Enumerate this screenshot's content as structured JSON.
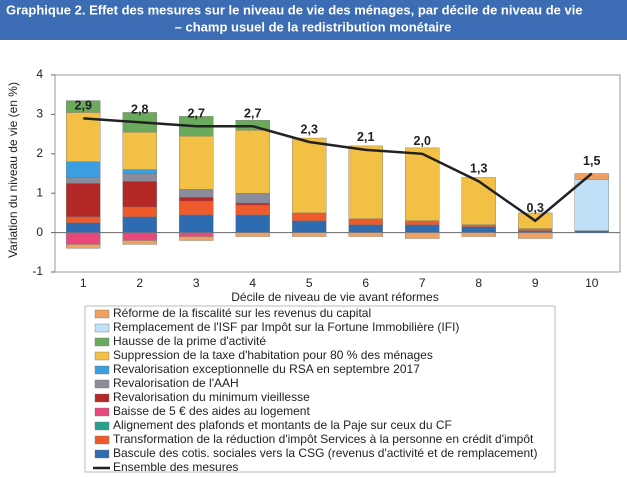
{
  "chart_data": {
    "type": "bar",
    "title": "Graphique 2. Effet des mesures sur le niveau de vie des ménages, par décile de niveau de vie",
    "subtitle": "– champ usuel de la redistribution monétaire",
    "y_label": "Variation du niveau de vie (en %)",
    "x_label": "Décile de niveau de vie avant réformes",
    "categories": [
      "1",
      "2",
      "3",
      "4",
      "5",
      "6",
      "7",
      "8",
      "9",
      "10"
    ],
    "ylim": [
      -1,
      4
    ],
    "yticks": [
      -1,
      0,
      1,
      2,
      3,
      4
    ],
    "series": [
      {
        "name": "Bascule des cotis. sociales vers la CSG (revenus d'activité et de remplacement)",
        "color": "#2e6bb0",
        "values": [
          0.25,
          0.4,
          0.45,
          0.45,
          0.3,
          0.2,
          0.2,
          0.15,
          0.05,
          0.05
        ]
      },
      {
        "name": "Transformation de la réduction d'impôt Services à la personne en crédit d'impôt",
        "color": "#ee5a2c",
        "values": [
          0.15,
          0.25,
          0.35,
          0.25,
          0.2,
          0.15,
          0.1,
          0.05,
          0.05,
          0
        ]
      },
      {
        "name": "Alignement des plafonds et montants de la Paje sur ceux du CF",
        "color": "#2aa08c",
        "values": [
          0,
          0,
          0,
          0,
          0,
          0,
          0,
          0,
          0,
          0
        ]
      },
      {
        "name": "Baisse de 5 € des aides au logement",
        "color": "#e8487c",
        "values": [
          -0.3,
          -0.2,
          -0.1,
          0,
          0,
          0,
          0,
          0,
          0,
          0
        ]
      },
      {
        "name": "Revalorisation du minimum vieillesse",
        "color": "#b52828",
        "values": [
          0.85,
          0.65,
          0.1,
          0.05,
          0,
          0,
          0,
          0,
          0,
          0
        ]
      },
      {
        "name": "Revalorisation de l'AAH",
        "color": "#8a8c9c",
        "values": [
          0.15,
          0.2,
          0.2,
          0.25,
          0,
          0,
          0,
          0,
          0,
          0
        ]
      },
      {
        "name": "Revalorisation exceptionnelle du RSA en septembre 2017",
        "color": "#3a9ee0",
        "values": [
          0.4,
          0.1,
          0,
          0,
          0,
          0,
          0,
          0,
          0,
          0
        ]
      },
      {
        "name": "Suppression de la taxe d'habitation pour 80 % des ménages",
        "color": "#f2c044",
        "values": [
          1.25,
          0.95,
          1.35,
          1.6,
          1.9,
          1.85,
          1.85,
          1.2,
          0.4,
          0
        ]
      },
      {
        "name": "Hausse de la prime d'activité",
        "color": "#6aaa5c",
        "values": [
          0.3,
          0.5,
          0.5,
          0.25,
          0,
          0,
          0,
          0,
          0,
          0
        ]
      },
      {
        "name": "Remplacement de l'ISF par Impôt sur la Fortune Immobilière (IFI)",
        "color": "#bfe0f6",
        "values": [
          0,
          0,
          0,
          0,
          0,
          0,
          0,
          0,
          0,
          1.3
        ]
      },
      {
        "name": "Réforme de la fiscalité sur les revenus du capital",
        "color": "#f0a060",
        "values": [
          -0.1,
          -0.1,
          -0.1,
          -0.1,
          -0.1,
          -0.1,
          -0.15,
          -0.1,
          -0.15,
          0.15
        ]
      }
    ],
    "line": {
      "name": "Ensemble des mesures",
      "color": "#222222",
      "values": [
        2.9,
        2.8,
        2.7,
        2.7,
        2.3,
        2.1,
        2.0,
        1.3,
        0.3,
        1.5
      ],
      "value_labels": [
        "2,9",
        "2,8",
        "2,7",
        "2,7",
        "2,3",
        "2,1",
        "2,0",
        "1,3",
        "0,3",
        "1,5"
      ]
    }
  }
}
